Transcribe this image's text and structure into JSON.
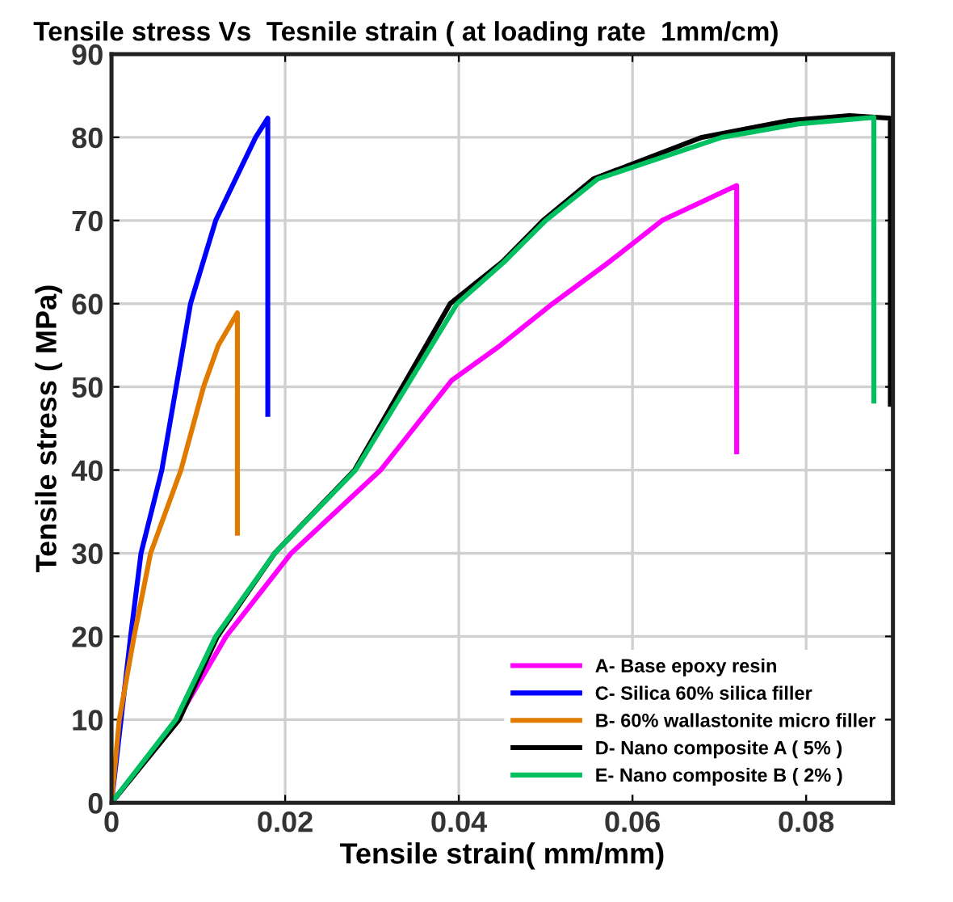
{
  "chart_data": {
    "type": "line",
    "title": "Tensile stress Vs  Tesnile strain ( at loading rate  1mm/cm)",
    "xlabel": "Tensile strain( mm/mm)",
    "ylabel": "Tensile stress ( MPa)",
    "xlim": [
      0,
      0.09
    ],
    "ylim": [
      0,
      90
    ],
    "xticks": [
      0,
      0.02,
      0.04,
      0.06,
      0.08
    ],
    "yticks": [
      0,
      10,
      20,
      30,
      40,
      50,
      60,
      70,
      80,
      90
    ],
    "grid": true,
    "legend": "bottom right",
    "marker": "none",
    "line_style": "solid",
    "series": [
      {
        "name": "A- Base epoxy resin",
        "color": "#ff00ff",
        "x": [
          0,
          0.0076,
          0.0132,
          0.0207,
          0.031,
          0.0392,
          0.0448,
          0.0508,
          0.0573,
          0.0634,
          0.072,
          0.072
        ],
        "values": [
          0,
          10,
          20,
          30,
          40,
          50.8,
          55,
          60,
          65,
          70,
          74.2,
          42.2
        ]
      },
      {
        "name": "C- Silica 60% silica filler",
        "color": "#0000ff",
        "x": [
          0,
          0.0011,
          0.0022,
          0.0034,
          0.0058,
          0.0091,
          0.012,
          0.0166,
          0.018,
          0.018
        ],
        "values": [
          0,
          10,
          20,
          30,
          40,
          60,
          70,
          80,
          82.3,
          46.7
        ]
      },
      {
        "name": "B- 60% wallastonite micro filler",
        "color": "#e07b00",
        "x": [
          0,
          0.0009,
          0.0026,
          0.0045,
          0.008,
          0.0106,
          0.0123,
          0.0145,
          0.0145
        ],
        "values": [
          0,
          10,
          20,
          30,
          40,
          50,
          55,
          58.9,
          32.4
        ]
      },
      {
        "name": "D- Nano composite A ( 5% )",
        "color": "#000000",
        "x": [
          0,
          0.0078,
          0.0122,
          0.0188,
          0.028,
          0.039,
          0.045,
          0.0497,
          0.0555,
          0.068,
          0.078,
          0.085,
          0.0897,
          0.0897
        ],
        "values": [
          0,
          10,
          20,
          30,
          40,
          60,
          65,
          70,
          75,
          80,
          82,
          82.6,
          82.3,
          47.9
        ]
      },
      {
        "name": "E- Nano composite B ( 2% )",
        "color": "#00c060",
        "x": [
          0,
          0.0074,
          0.012,
          0.0188,
          0.0281,
          0.0398,
          0.0452,
          0.05,
          0.056,
          0.0703,
          0.079,
          0.0878,
          0.0878
        ],
        "values": [
          0,
          10,
          20,
          30,
          40,
          60,
          65,
          70,
          75,
          80,
          81.6,
          82.4,
          48.3
        ]
      }
    ]
  }
}
